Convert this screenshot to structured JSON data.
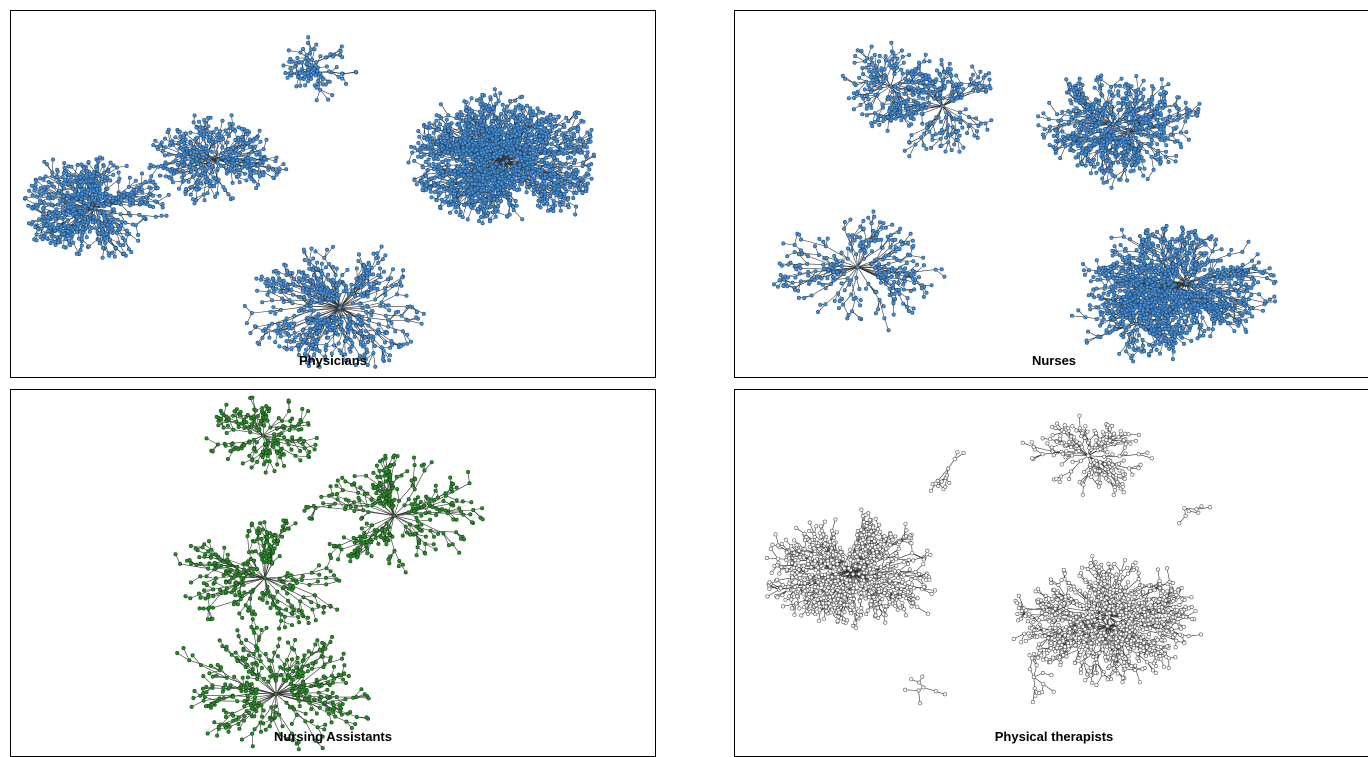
{
  "panels": [
    {
      "id": "physicians",
      "caption": "Physicians",
      "node_fill": "#4a90d9",
      "node_stroke": "#1f4f7a"
    },
    {
      "id": "nurses",
      "caption": "Nurses",
      "node_fill": "#4a90d9",
      "node_stroke": "#1f4f7a"
    },
    {
      "id": "nursing-assistants",
      "caption": "Nursing Assistants",
      "node_fill": "#2e8b2e",
      "node_stroke": "#0f4a0f"
    },
    {
      "id": "physical-therapists",
      "caption": "Physical therapists",
      "node_fill": "#ffffff",
      "node_stroke": "#555555"
    }
  ]
}
